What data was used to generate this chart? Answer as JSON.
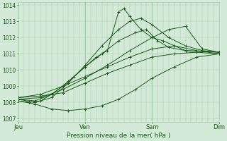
{
  "bg_color": "#d4ead8",
  "grid_color": "#a0c8a0",
  "line_color": "#1a5c1a",
  "title": "Pression niveau de la mer( hPa )",
  "xlabel_days": [
    "Jeu",
    "Ven",
    "Sam",
    "Dim"
  ],
  "xlim": [
    0,
    72
  ],
  "ylim": [
    1006.8,
    1014.2
  ],
  "yticks": [
    1007,
    1008,
    1009,
    1010,
    1011,
    1012,
    1013,
    1014
  ],
  "day_ticks": [
    0,
    24,
    48,
    72
  ],
  "ensemble_lines": [
    [
      1008.3,
      1008.4,
      1008.6,
      1009.2,
      1009.8,
      1010.3,
      1010.8,
      1011.0,
      1011.1,
      1011.0
    ],
    [
      1008.1,
      1007.9,
      1007.6,
      1007.5,
      1007.6,
      1007.8,
      1008.2,
      1008.8,
      1009.5,
      1010.2,
      1010.8,
      1011.0
    ],
    [
      1008.2,
      1008.3,
      1008.8,
      1009.5,
      1010.3,
      1011.2,
      1012.0,
      1012.5,
      1012.7,
      1011.3,
      1011.1
    ],
    [
      1008.1,
      1008.0,
      1008.1,
      1008.5,
      1009.0,
      1009.6,
      1010.2,
      1010.8,
      1011.2,
      1013.6,
      1013.8,
      1013.3,
      1012.5,
      1012.0,
      1011.8,
      1011.5,
      1011.2,
      1011.1
    ],
    [
      1008.2,
      1008.0,
      1008.3,
      1009.2,
      1010.3,
      1011.5,
      1012.5,
      1013.0,
      1013.2,
      1012.8,
      1012.0,
      1011.5,
      1011.2,
      1011.1
    ],
    [
      1008.2,
      1008.1,
      1008.5,
      1009.3,
      1010.2,
      1011.0,
      1011.8,
      1012.3,
      1012.5,
      1011.8,
      1011.4,
      1011.2,
      1011.1
    ],
    [
      1008.3,
      1008.5,
      1009.0,
      1009.6,
      1010.2,
      1010.8,
      1011.3,
      1011.5,
      1011.2,
      1011.0
    ]
  ],
  "ensemble_x": [
    [
      0,
      8,
      16,
      24,
      32,
      40,
      48,
      56,
      64,
      72
    ],
    [
      0,
      6,
      12,
      18,
      24,
      30,
      36,
      42,
      48,
      56,
      64,
      72
    ],
    [
      0,
      8,
      16,
      24,
      32,
      40,
      48,
      54,
      60,
      66,
      72
    ],
    [
      0,
      4,
      8,
      12,
      16,
      20,
      24,
      28,
      32,
      36,
      38,
      40,
      44,
      48,
      52,
      56,
      60,
      72
    ],
    [
      0,
      6,
      12,
      18,
      24,
      30,
      36,
      40,
      44,
      48,
      54,
      60,
      66,
      72
    ],
    [
      0,
      6,
      12,
      18,
      24,
      30,
      36,
      42,
      46,
      50,
      54,
      60,
      72
    ],
    [
      0,
      8,
      16,
      24,
      32,
      40,
      48,
      56,
      64,
      72
    ]
  ]
}
